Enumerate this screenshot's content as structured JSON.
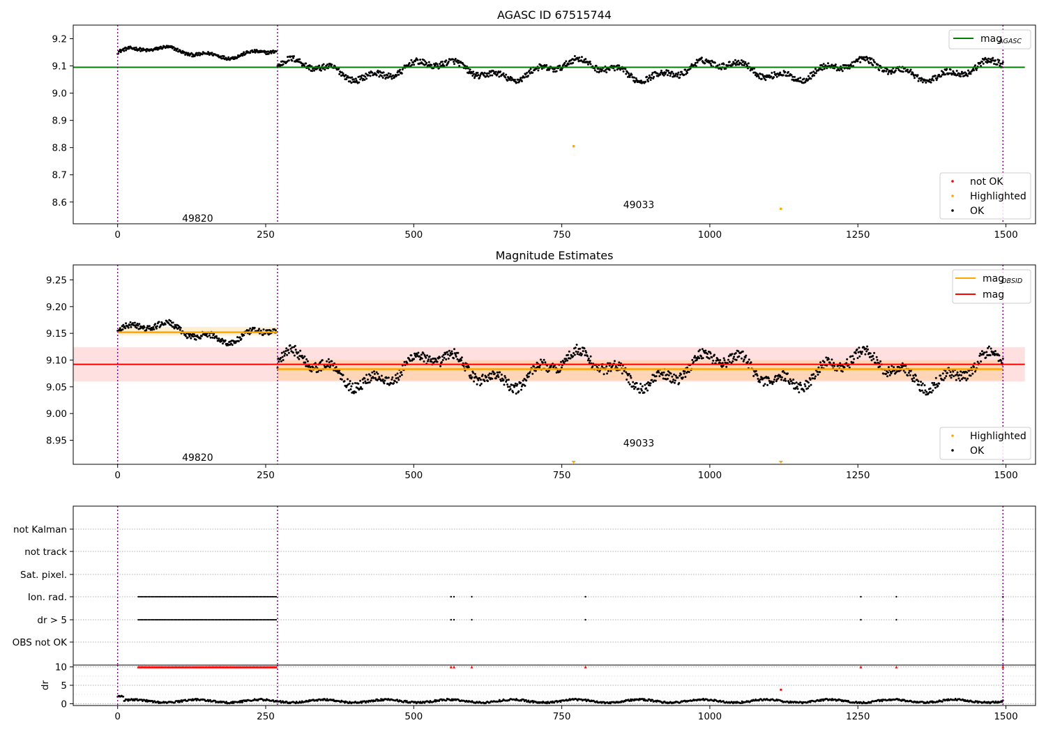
{
  "chart_data": [
    {
      "type": "scatter",
      "title": "AGASC ID 67515744",
      "xlim": [
        -75,
        1550
      ],
      "ylim": [
        8.52,
        9.25
      ],
      "xticks": [
        "0",
        "250",
        "500",
        "750",
        "1000",
        "1250",
        "1500"
      ],
      "yticks": [
        "8.6",
        "8.7",
        "8.8",
        "8.9",
        "9.0",
        "9.1",
        "9.2"
      ],
      "grid": false,
      "mag_agasc": 9.095,
      "obs_boundaries": [
        0,
        270,
        1495
      ],
      "obs_labels": [
        {
          "label": "49820",
          "x": 135,
          "y": 8.54
        },
        {
          "label": "49033",
          "x": 880,
          "y": 8.59
        }
      ],
      "highlighted_points": [
        {
          "x": 770,
          "y": 8.805
        },
        {
          "x": 1120,
          "y": 8.575
        }
      ],
      "ok_segments": [
        {
          "x0": 0,
          "x1": 268,
          "baseline": 9.15,
          "amp": 0.015,
          "n": 250
        },
        {
          "x0": 270,
          "x1": 1495,
          "baseline": 9.085,
          "amp": 0.028,
          "n": 1150
        }
      ],
      "legend_upper": {
        "position": "upper-right",
        "entries": [
          {
            "label": "mag",
            "sub": "AGASC",
            "color": "#008000"
          }
        ]
      },
      "legend_lower": {
        "position": "lower-right",
        "entries": [
          {
            "label": "not OK",
            "color": "#ff0000"
          },
          {
            "label": "Highlighted",
            "color": "#ffa500"
          },
          {
            "label": "OK",
            "color": "#000000"
          }
        ]
      }
    },
    {
      "type": "scatter",
      "title": "Magnitude Estimates",
      "xlim": [
        -75,
        1550
      ],
      "ylim": [
        8.905,
        9.278
      ],
      "xticks": [
        "0",
        "250",
        "500",
        "750",
        "1000",
        "1250",
        "1500"
      ],
      "yticks": [
        "8.95",
        "9.00",
        "9.05",
        "9.10",
        "9.15",
        "9.20",
        "9.25"
      ],
      "grid": false,
      "mag": 9.092,
      "mag_band": [
        9.06,
        9.124
      ],
      "mag_obsid": [
        {
          "x0": 0,
          "x1": 270,
          "value": 9.152,
          "band": [
            9.146,
            9.162
          ]
        },
        {
          "x0": 270,
          "x1": 1495,
          "value": 9.083,
          "band": [
            9.062,
            9.1
          ]
        }
      ],
      "obs_boundaries": [
        0,
        270,
        1495
      ],
      "obs_labels": [
        {
          "label": "49820",
          "x": 135,
          "y": 8.918
        },
        {
          "label": "49033",
          "x": 880,
          "y": 8.945
        }
      ],
      "highlighted_markers": [
        {
          "x": 770
        },
        {
          "x": 1120
        }
      ],
      "legend_upper": {
        "position": "upper-right",
        "entries": [
          {
            "label": "mag",
            "sub": "OBSID",
            "color": "#ffa500"
          },
          {
            "label": "mag",
            "sub": "",
            "color": "#ff0000"
          }
        ]
      },
      "legend_lower": {
        "position": "lower-right",
        "entries": [
          {
            "label": "Highlighted",
            "color": "#ffa500"
          },
          {
            "label": "OK",
            "color": "#000000"
          }
        ]
      }
    },
    {
      "type": "scatter",
      "title": "",
      "xlim": [
        -75,
        1550
      ],
      "flag_rows": [
        "not Kalman",
        "not track",
        "Sat. pixel.",
        "Ion. rad.",
        "dr > 5",
        "OBS not OK"
      ],
      "flag_events": {
        "Ion. rad.": {
          "dense_range": [
            35,
            268
          ],
          "isolated": [
            563,
            568,
            598,
            790,
            1255,
            1315,
            1495
          ]
        },
        "dr > 5": {
          "dense_range": [
            35,
            268
          ],
          "isolated": [
            563,
            568,
            598,
            790,
            1255,
            1315,
            1495
          ]
        }
      },
      "obs_boundaries": [
        0,
        270,
        1495
      ]
    },
    {
      "type": "scatter",
      "title": "",
      "xlim": [
        -75,
        1550
      ],
      "ylim": [
        -0.5,
        10.5
      ],
      "ylabel": "dr",
      "xticks": [
        "0",
        "250",
        "500",
        "750",
        "1000",
        "1250",
        "1500"
      ],
      "yticks": [
        "0",
        "5",
        "10"
      ],
      "grid": true,
      "dr_baseline": 0.7,
      "high_dr_markers": {
        "dense_range": [
          35,
          268
        ],
        "isolated": [
          563,
          568,
          598,
          790,
          1255,
          1315,
          1495
        ],
        "value": 10,
        "color": "#ff0000"
      },
      "outlier": {
        "x": 1120,
        "y": 3.8,
        "color": "#ff0000"
      },
      "obs_boundaries": [
        0,
        270,
        1495
      ]
    }
  ]
}
